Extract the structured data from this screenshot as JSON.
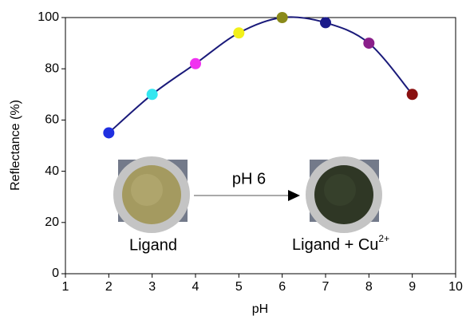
{
  "chart_data": {
    "type": "scatter",
    "x_label": "pH",
    "y_label": "Reflectance (%)",
    "xlim": [
      1,
      10
    ],
    "ylim": [
      0,
      100
    ],
    "xticks": [
      1,
      2,
      3,
      4,
      5,
      6,
      7,
      8,
      9,
      10
    ],
    "yticks": [
      0,
      20,
      40,
      60,
      80,
      100
    ],
    "x": [
      2,
      3,
      4,
      5,
      6,
      7,
      8,
      9
    ],
    "series": [
      {
        "values": [
          55,
          70,
          82,
          94,
          100,
          98,
          90,
          70
        ],
        "colors": [
          "#1f2fe0",
          "#33e6f0",
          "#f032f0",
          "#f2f019",
          "#8a8a1a",
          "#1a1a8a",
          "#8a1f8a",
          "#8a1010"
        ],
        "line_color": "#1a1a7a"
      }
    ],
    "smooth_line": true,
    "annotations": {
      "arrow_label": "pH 6",
      "left_label": "Ligand",
      "right_label": "Ligand + Cu",
      "right_label_sup": "2+"
    }
  }
}
